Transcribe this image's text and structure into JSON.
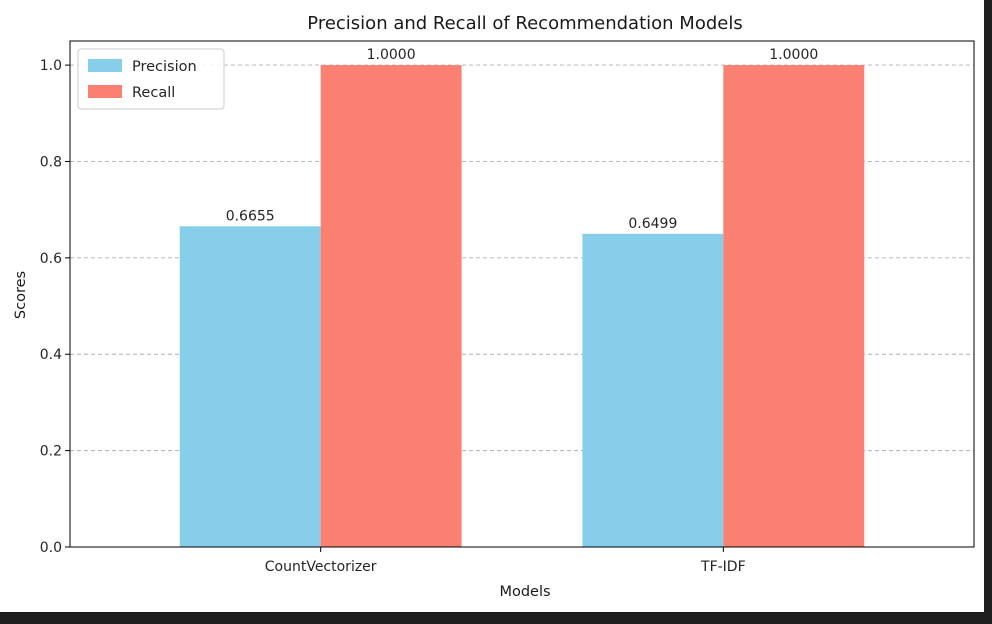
{
  "chart_data": {
    "type": "bar",
    "title": "Precision and Recall of Recommendation Models",
    "xlabel": "Models",
    "ylabel": "Scores",
    "categories": [
      "CountVectorizer",
      "TF-IDF"
    ],
    "series": [
      {
        "name": "Precision",
        "color": "#87CEEB",
        "values": [
          0.6655,
          0.6499
        ],
        "labels": [
          "0.6655",
          "0.6499"
        ]
      },
      {
        "name": "Recall",
        "color": "#FA8072",
        "values": [
          1.0,
          1.0
        ],
        "labels": [
          "1.0000",
          "1.0000"
        ]
      }
    ],
    "ylim": [
      0,
      1.05
    ],
    "yticks": [
      "0.0",
      "0.2",
      "0.4",
      "0.6",
      "0.8",
      "1.0"
    ],
    "grid": "y-dashed",
    "legend_position": "top-left"
  }
}
